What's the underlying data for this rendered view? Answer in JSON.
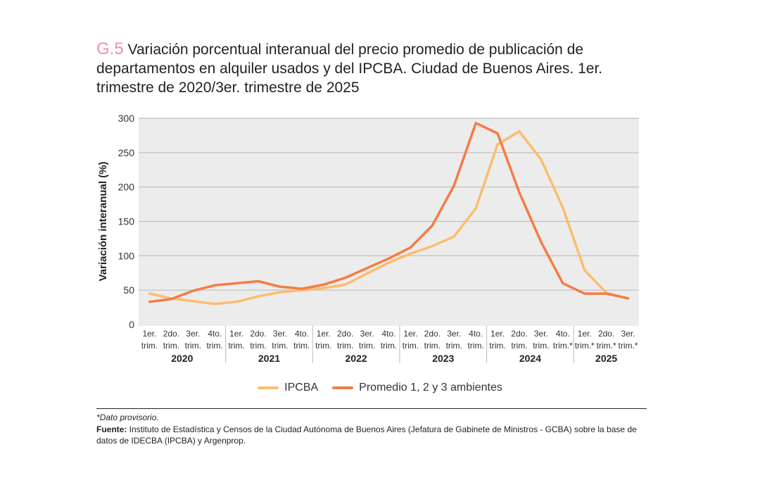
{
  "title": {
    "number": "G.5",
    "text": "Variación porcentual interanual del precio promedio de publicación de departamentos en alquiler usados y del IPCBA. Ciudad de Buenos Aires. 1er. trimestre de 2020/3er. trimestre de 2025"
  },
  "chart_data": {
    "type": "line",
    "ylabel": "Variación interanual (%)",
    "ylim": [
      0,
      300
    ],
    "yticks": [
      0,
      50,
      100,
      150,
      200,
      250,
      300
    ],
    "grid": true,
    "legend_position": "bottom",
    "categories": [
      [
        "1er.",
        "trim."
      ],
      [
        "2do.",
        "trim."
      ],
      [
        "3er.",
        "trim."
      ],
      [
        "4to.",
        "trim."
      ],
      [
        "1er.",
        "trim."
      ],
      [
        "2do.",
        "trim."
      ],
      [
        "3er.",
        "trim."
      ],
      [
        "4to.",
        "trim."
      ],
      [
        "1er.",
        "trim."
      ],
      [
        "2do.",
        "trim."
      ],
      [
        "3er.",
        "trim."
      ],
      [
        "4to.",
        "trim."
      ],
      [
        "1er.",
        "trim."
      ],
      [
        "2do.",
        "trim."
      ],
      [
        "3er.",
        "trim."
      ],
      [
        "4to.",
        "trim."
      ],
      [
        "1er.",
        "trim."
      ],
      [
        "2do.",
        "trim."
      ],
      [
        "3er.",
        "trim."
      ],
      [
        "4to.",
        "trim.*"
      ],
      [
        "1er.",
        "trim.*"
      ],
      [
        "2do.",
        "trim.*"
      ],
      [
        "3er.",
        "trim.*"
      ]
    ],
    "years": [
      {
        "label": "2020",
        "count": 4
      },
      {
        "label": "2021",
        "count": 4
      },
      {
        "label": "2022",
        "count": 4
      },
      {
        "label": "2023",
        "count": 4
      },
      {
        "label": "2024",
        "count": 4
      },
      {
        "label": "2025",
        "count": 3
      }
    ],
    "series": [
      {
        "name": "IPCBA",
        "color": "#fbbd6e",
        "values": [
          45,
          38,
          34,
          30,
          33,
          41,
          47,
          50,
          53,
          58,
          74,
          90,
          103,
          114,
          128,
          169,
          262,
          281,
          240,
          170,
          79,
          46,
          38
        ]
      },
      {
        "name": "Promedio 1, 2 y 3 ambientes",
        "color": "#f47c45",
        "values": [
          33,
          37,
          49,
          57,
          60,
          63,
          55,
          52,
          58,
          68,
          82,
          96,
          112,
          144,
          202,
          293,
          278,
          192,
          120,
          60,
          45,
          45,
          38
        ]
      }
    ]
  },
  "footnote": "*Dato provisorio.",
  "source": {
    "label": "Fuente:",
    "text": " Instituto de Estadística y Censos de la Ciudad Autónoma de Buenos Aires (Jefatura de Gabinete de Ministros - GCBA) sobre la base de datos de IDECBA (IPCBA) y Argenprop."
  }
}
